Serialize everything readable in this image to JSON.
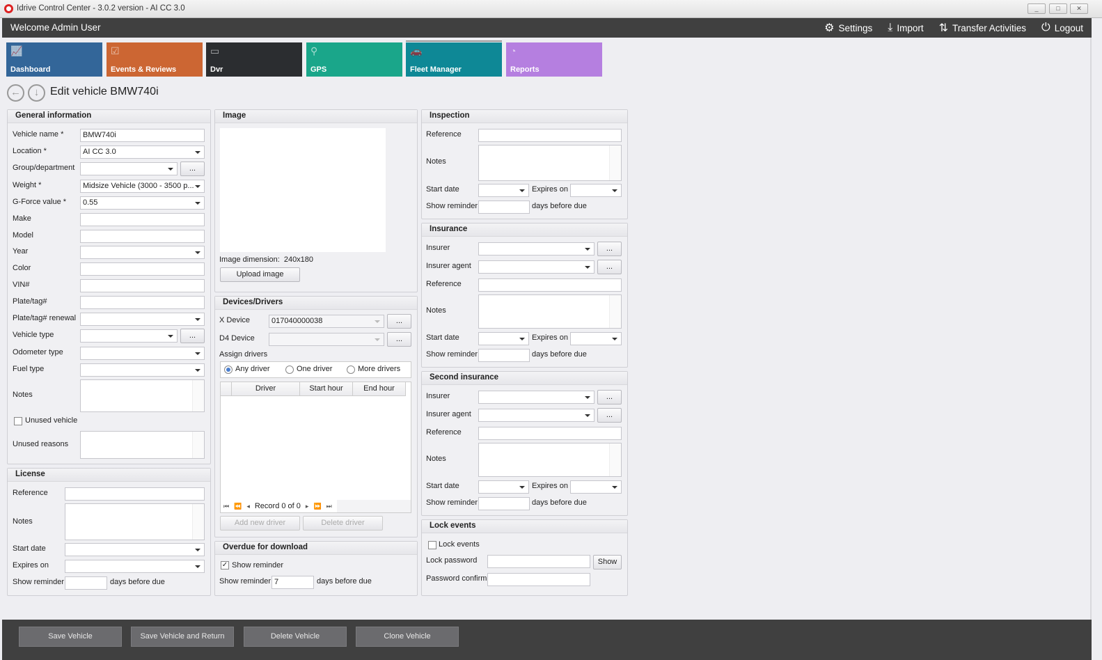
{
  "window": {
    "title": "Idrive Control Center - 3.0.2 version - AI CC 3.0",
    "minimize": "_",
    "maximize": "□",
    "close": "✕"
  },
  "header": {
    "welcome": "Welcome Admin User",
    "settings": "Settings",
    "import": "Import",
    "transfer": "Transfer Activities",
    "logout": "Logout"
  },
  "tiles": [
    {
      "label": "Dashboard",
      "color": "#336699"
    },
    {
      "label": "Events & Reviews",
      "color": "#cc6633"
    },
    {
      "label": "Dvr",
      "color": "#2b2d30"
    },
    {
      "label": "GPS",
      "color": "#1aa68a"
    },
    {
      "label": "Fleet Manager",
      "color": "#0e8896"
    },
    {
      "label": "Reports",
      "color": "#b57fe0"
    }
  ],
  "page": {
    "title": "Edit vehicle BMW740i",
    "back": "←",
    "down": "↓"
  },
  "general": {
    "title": "General information",
    "vehicle_name_label": "Vehicle name *",
    "vehicle_name": "BMW740i",
    "location_label": "Location *",
    "location": "AI CC 3.0",
    "group_label": "Group/department",
    "weight_label": "Weight *",
    "weight": "Midsize Vehicle (3000 - 3500 p...",
    "gforce_label": "G-Force value *",
    "gforce": "0.55",
    "make_label": "Make",
    "model_label": "Model",
    "year_label": "Year",
    "color_label": "Color",
    "vin_label": "VIN#",
    "plate_label": "Plate/tag#",
    "plate_renewal_label": "Plate/tag# renewal",
    "vehicle_type_label": "Vehicle type",
    "odometer_label": "Odometer type",
    "fuel_label": "Fuel type",
    "notes_label": "Notes",
    "unused_label": "Unused vehicle",
    "unused_reasons_label": "Unused reasons",
    "more": "..."
  },
  "license": {
    "title": "License",
    "reference_label": "Reference",
    "notes_label": "Notes",
    "start_label": "Start date",
    "expires_label": "Expires on",
    "reminder_label": "Show reminder",
    "days_label": "days before due"
  },
  "image": {
    "title": "Image",
    "dimension_label": "Image dimension:",
    "dimension": "240x180",
    "upload": "Upload image"
  },
  "devices": {
    "title": "Devices/Drivers",
    "x_device_label": "X Device",
    "x_device": "017040000038",
    "d4_device_label": "D4 Device",
    "assign_label": "Assign drivers",
    "radios": [
      "Any driver",
      "One driver",
      "More drivers"
    ],
    "selected": "Any driver",
    "columns": [
      "Driver",
      "Start hour",
      "End hour"
    ],
    "record": "Record 0 of 0",
    "add": "Add new driver",
    "delete": "Delete driver"
  },
  "overdue": {
    "title": "Overdue for download",
    "show_label": "Show reminder",
    "show_checked": true,
    "reminder_label": "Show reminder",
    "reminder": "7",
    "days_label": "days before due"
  },
  "inspection": {
    "title": "Inspection",
    "reference_label": "Reference",
    "notes_label": "Notes",
    "start_label": "Start date",
    "expires_label": "Expires on",
    "reminder_label": "Show reminder",
    "days_label": "days before due"
  },
  "insurance": {
    "title": "Insurance",
    "insurer_label": "Insurer",
    "agent_label": "Insurer agent",
    "reference_label": "Reference",
    "notes_label": "Notes",
    "start_label": "Start date",
    "expires_label": "Expires on",
    "reminder_label": "Show reminder",
    "days_label": "days before due"
  },
  "second_insurance": {
    "title": "Second insurance",
    "insurer_label": "Insurer",
    "agent_label": "Insurer agent",
    "reference_label": "Reference",
    "notes_label": "Notes",
    "start_label": "Start date",
    "expires_label": "Expires on",
    "reminder_label": "Show reminder",
    "days_label": "days before due"
  },
  "lock": {
    "title": "Lock events",
    "lock_label": "Lock events",
    "password_label": "Lock password",
    "confirm_label": "Password confirm",
    "show": "Show"
  },
  "footer": {
    "save": "Save Vehicle",
    "save_return": "Save Vehicle and Return",
    "delete": "Delete Vehicle",
    "clone": "Clone Vehicle"
  }
}
